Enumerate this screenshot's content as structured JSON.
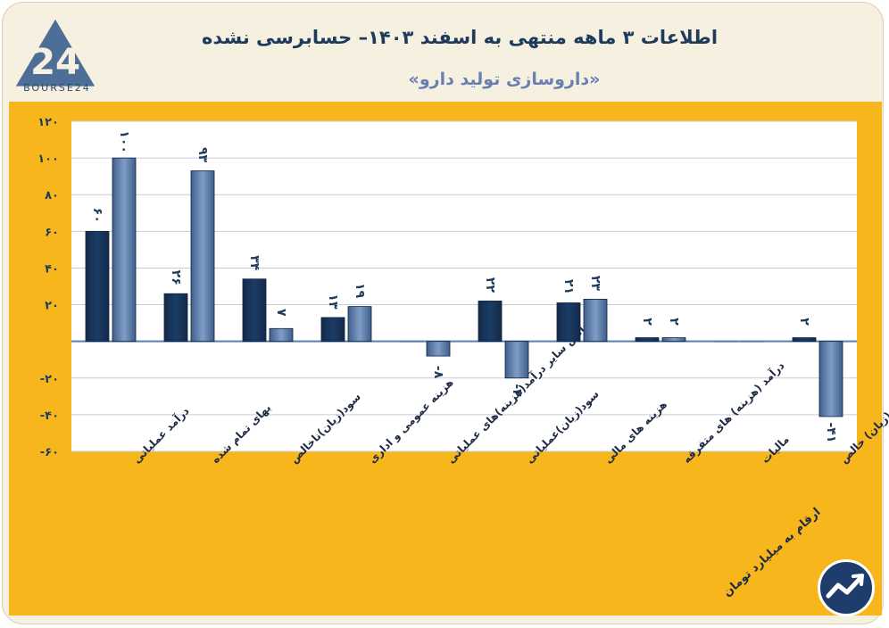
{
  "header": {
    "title": "اطلاعات ۳ ماهه منتهی به اسفند ۱۴۰۳– حسابرسی نشده",
    "subtitle": "«داروسازی تولید دارو»",
    "logo_text": "BOURSE24"
  },
  "footer": {
    "note": "ارقام به میلیارد تومان",
    "badge_icon": "trend-arrow-icon"
  },
  "colors": {
    "background": "#f6f0e1",
    "plot_area": "#f7b61c",
    "series_prev": "#1b3d66",
    "series_curr": "#5d7fab",
    "label_text": "#1f3b5c"
  },
  "chart_data": {
    "type": "bar",
    "categories": [
      "درآمد عملیاتی",
      "بهای تمام شده",
      "سود(زیان)ناخالص",
      "هزینه عمومی و اداری",
      "خالص سایر درآمد(هزینه)های عملیاتی",
      "سود(زیان)عملیاتی",
      "هزینه های مالی",
      "درآمد (هزینه) های متفرقه",
      "مالیات",
      "سود(زیان) خالص"
    ],
    "series": [
      {
        "values": [
          60,
          26,
          34,
          13,
          0,
          22,
          21,
          2,
          0,
          2
        ]
      },
      {
        "values": [
          100,
          93,
          7,
          19,
          -8,
          -20,
          23,
          2,
          0,
          -41
        ]
      }
    ],
    "data_labels": [
      [
        "۶۰",
        "۲۶",
        "۳۴",
        "۱۳",
        "",
        "۲۲",
        "۲۱",
        "۲",
        "",
        "۲"
      ],
      [
        "۱۰۰",
        "۹۳",
        "۷",
        "۱۹",
        "-۸",
        "-۲۰",
        "۲۳",
        "۲",
        "",
        "-۴۱"
      ]
    ],
    "ylim": [
      -60,
      120
    ],
    "yticks": [
      -60,
      -40,
      -20,
      20,
      40,
      60,
      80,
      100,
      120
    ],
    "ytick_labels": [
      "-۶۰",
      "-۴۰",
      "-۲۰",
      "۲۰",
      "۴۰",
      "۶۰",
      "۸۰",
      "۱۰۰",
      "۱۲۰"
    ],
    "grid": true
  }
}
